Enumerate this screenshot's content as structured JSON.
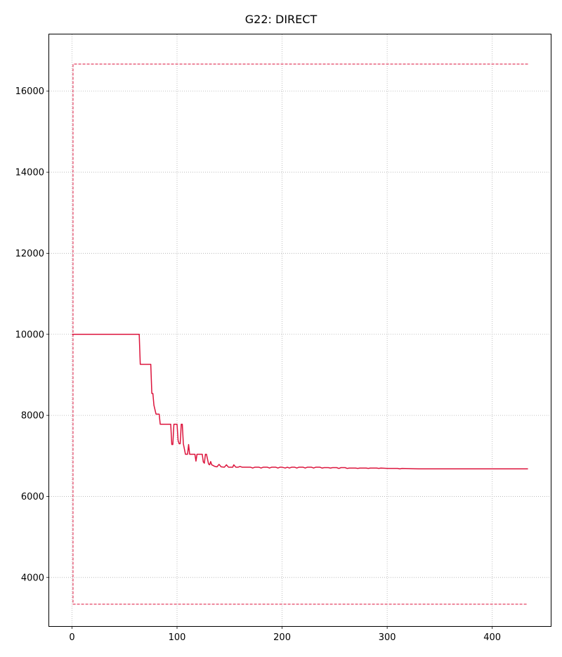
{
  "chart_data": {
    "type": "line",
    "title": "G22: DIRECT",
    "xlabel": "",
    "ylabel": "",
    "xlim": [
      -21.7,
      455.7
    ],
    "ylim": [
      2800,
      17400
    ],
    "xticks": [
      0,
      100,
      200,
      300,
      400
    ],
    "yticks": [
      4000,
      6000,
      8000,
      10000,
      12000,
      14000,
      16000
    ],
    "xtick_labels": [
      "0",
      "100",
      "200",
      "300",
      "400"
    ],
    "ytick_labels": [
      "4000",
      "6000",
      "8000",
      "10000",
      "12000",
      "14000",
      "16000"
    ],
    "grid": true,
    "legend": "none",
    "series": [
      {
        "color": "#dc143c",
        "style": "solid",
        "points": [
          [
            0,
            10000
          ],
          [
            64,
            10000
          ],
          [
            65,
            9260
          ],
          [
            75,
            9260
          ],
          [
            76,
            8540
          ],
          [
            77,
            8540
          ],
          [
            78,
            8250
          ],
          [
            80,
            8030
          ],
          [
            83,
            8030
          ],
          [
            84,
            7780
          ],
          [
            94,
            7780
          ],
          [
            95,
            7280
          ],
          [
            96,
            7280
          ],
          [
            97,
            7780
          ],
          [
            100,
            7780
          ],
          [
            101,
            7380
          ],
          [
            102,
            7300
          ],
          [
            103,
            7300
          ],
          [
            104,
            7780
          ],
          [
            105,
            7780
          ],
          [
            106,
            7300
          ],
          [
            108,
            7040
          ],
          [
            110,
            7040
          ],
          [
            111,
            7280
          ],
          [
            112,
            7040
          ],
          [
            117,
            7040
          ],
          [
            118,
            6870
          ],
          [
            119,
            7040
          ],
          [
            124,
            7040
          ],
          [
            125,
            6850
          ],
          [
            126,
            6820
          ],
          [
            127,
            7040
          ],
          [
            128,
            7040
          ],
          [
            130,
            6800
          ],
          [
            131,
            6780
          ],
          [
            132,
            6860
          ],
          [
            133,
            6780
          ],
          [
            136,
            6740
          ],
          [
            138,
            6730
          ],
          [
            140,
            6790
          ],
          [
            142,
            6730
          ],
          [
            145,
            6720
          ],
          [
            147,
            6780
          ],
          [
            149,
            6720
          ],
          [
            153,
            6720
          ],
          [
            154,
            6780
          ],
          [
            156,
            6720
          ],
          [
            158,
            6720
          ],
          [
            160,
            6740
          ],
          [
            162,
            6720
          ],
          [
            170,
            6720
          ],
          [
            172,
            6700
          ],
          [
            174,
            6720
          ],
          [
            178,
            6720
          ],
          [
            180,
            6700
          ],
          [
            182,
            6720
          ],
          [
            186,
            6720
          ],
          [
            188,
            6700
          ],
          [
            190,
            6720
          ],
          [
            194,
            6720
          ],
          [
            196,
            6700
          ],
          [
            198,
            6720
          ],
          [
            200,
            6720
          ],
          [
            203,
            6700
          ],
          [
            205,
            6720
          ],
          [
            207,
            6700
          ],
          [
            209,
            6720
          ],
          [
            212,
            6720
          ],
          [
            214,
            6700
          ],
          [
            216,
            6720
          ],
          [
            220,
            6720
          ],
          [
            222,
            6700
          ],
          [
            224,
            6720
          ],
          [
            228,
            6720
          ],
          [
            230,
            6700
          ],
          [
            232,
            6720
          ],
          [
            236,
            6720
          ],
          [
            238,
            6700
          ],
          [
            240,
            6710
          ],
          [
            244,
            6710
          ],
          [
            246,
            6700
          ],
          [
            248,
            6710
          ],
          [
            252,
            6710
          ],
          [
            254,
            6690
          ],
          [
            256,
            6710
          ],
          [
            260,
            6710
          ],
          [
            262,
            6690
          ],
          [
            264,
            6700
          ],
          [
            270,
            6700
          ],
          [
            272,
            6690
          ],
          [
            274,
            6700
          ],
          [
            280,
            6700
          ],
          [
            282,
            6690
          ],
          [
            284,
            6700
          ],
          [
            290,
            6700
          ],
          [
            292,
            6690
          ],
          [
            294,
            6700
          ],
          [
            300,
            6690
          ],
          [
            310,
            6690
          ],
          [
            312,
            6680
          ],
          [
            314,
            6690
          ],
          [
            330,
            6680
          ],
          [
            360,
            6680
          ],
          [
            400,
            6680
          ],
          [
            434,
            6680
          ]
        ]
      },
      {
        "color": "#dc143c",
        "style": "dashed",
        "points": [
          [
            434,
            16670
          ],
          [
            1,
            16670
          ],
          [
            1,
            3340
          ],
          [
            434,
            3340
          ]
        ]
      }
    ]
  }
}
